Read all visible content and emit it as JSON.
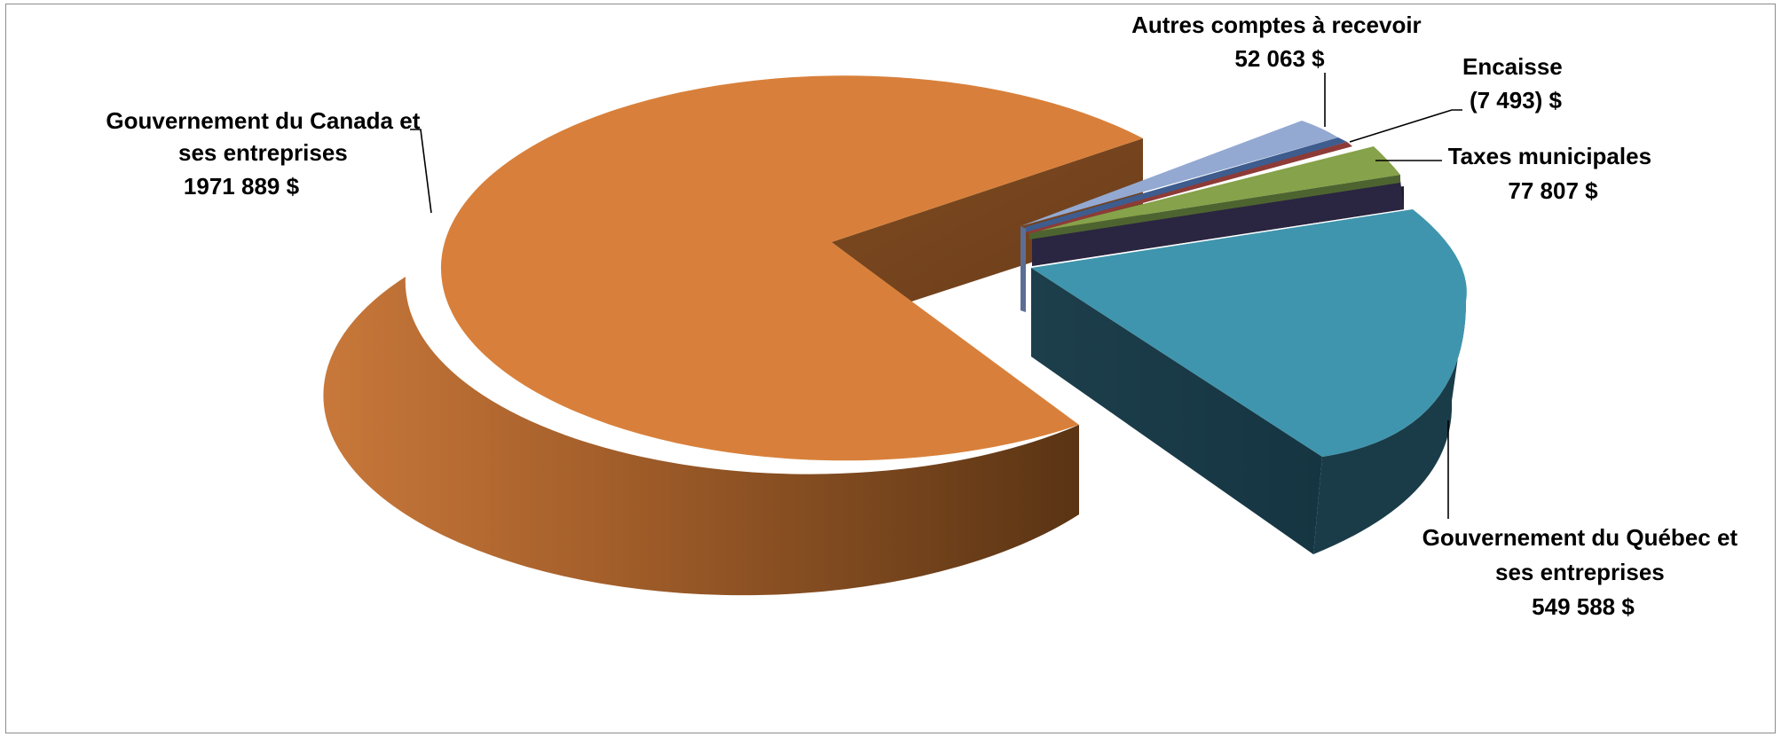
{
  "chart_data": {
    "type": "pie",
    "title": "",
    "slices": [
      {
        "label": "Gouvernement du Canada et ses entreprises",
        "value_text": "1971 889  $",
        "value": 1971889,
        "color": "#d8803b"
      },
      {
        "label": "Gouvernement du Québec et ses entreprises",
        "value_text": "549 588  $",
        "value": 549588,
        "color": "#3f95ad"
      },
      {
        "label": "",
        "value_text": "",
        "value": 40000,
        "color": "#2a2540"
      },
      {
        "label": "Taxes municipales",
        "value_text": "77 807  $",
        "value": 77807,
        "color": "#86a24a"
      },
      {
        "label": "Encaisse",
        "value_text": "(7 493) $",
        "value": -7493,
        "color": "#8e3b37"
      },
      {
        "label": "",
        "value_text": "",
        "value": 6000,
        "color": "#3e5c8e"
      },
      {
        "label": "Autres comptes à recevoir",
        "value_text": "52 063  $",
        "value": 52063,
        "color": "#93a9d2"
      }
    ],
    "labels": {
      "canada": [
        "Gouvernement du Canada et",
        "ses entreprises",
        "1971 889  $"
      ],
      "quebec": [
        "Gouvernement du Québec et",
        "ses entreprises",
        "549 588  $"
      ],
      "taxes": [
        "Taxes municipales",
        "77 807  $"
      ],
      "encaisse": [
        "Encaisse",
        "(7 493) $"
      ],
      "autres": [
        "Autres comptes à recevoir",
        "52 063  $"
      ]
    },
    "legend": "none",
    "grid": false
  }
}
